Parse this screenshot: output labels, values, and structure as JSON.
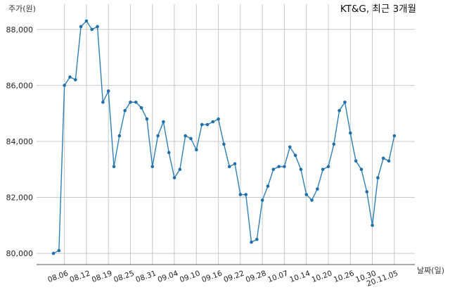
{
  "chart_data": {
    "type": "line",
    "title": "KT&G, 최근 3개월",
    "ylabel": "주가(원)",
    "xlabel": "날짜(일)",
    "ylim": [
      79600,
      88900
    ],
    "yticks": [
      80000,
      82000,
      84000,
      86000,
      88000
    ],
    "ytick_labels": [
      "80,000",
      "82,000",
      "84,000",
      "86,000",
      "88,000"
    ],
    "xtick_labels": [
      "08.06",
      "08.12",
      "08.19",
      "08.25",
      "08.31",
      "09.04",
      "09.10",
      "09.16",
      "09.22",
      "09.28",
      "10.07",
      "10.14",
      "10.20",
      "10.26",
      "10.30",
      "20.11.05"
    ],
    "xtick_index": [
      2,
      6,
      10,
      14,
      18,
      22,
      26,
      30,
      34,
      38,
      42,
      46,
      50,
      54,
      58,
      62
    ],
    "grid": true,
    "line_color": "#2e7fb8",
    "marker_color": "#1f6fa9",
    "values": [
      80000,
      80100,
      86000,
      86300,
      86200,
      88100,
      88300,
      88000,
      88100,
      85400,
      85800,
      83100,
      84200,
      85100,
      85400,
      85400,
      85200,
      84800,
      83100,
      84200,
      84700,
      83600,
      82700,
      83000,
      84200,
      84100,
      83700,
      84600,
      84600,
      84700,
      84800,
      83900,
      83100,
      83200,
      82100,
      82100,
      80400,
      80500,
      81900,
      82400,
      83000,
      83100,
      83100,
      83800,
      83500,
      83000,
      82100,
      81900,
      82300,
      83000,
      83100,
      83900,
      85100,
      85400,
      84300,
      83300,
      83000,
      82200,
      81000,
      82700,
      83400,
      83300,
      84200
    ]
  }
}
